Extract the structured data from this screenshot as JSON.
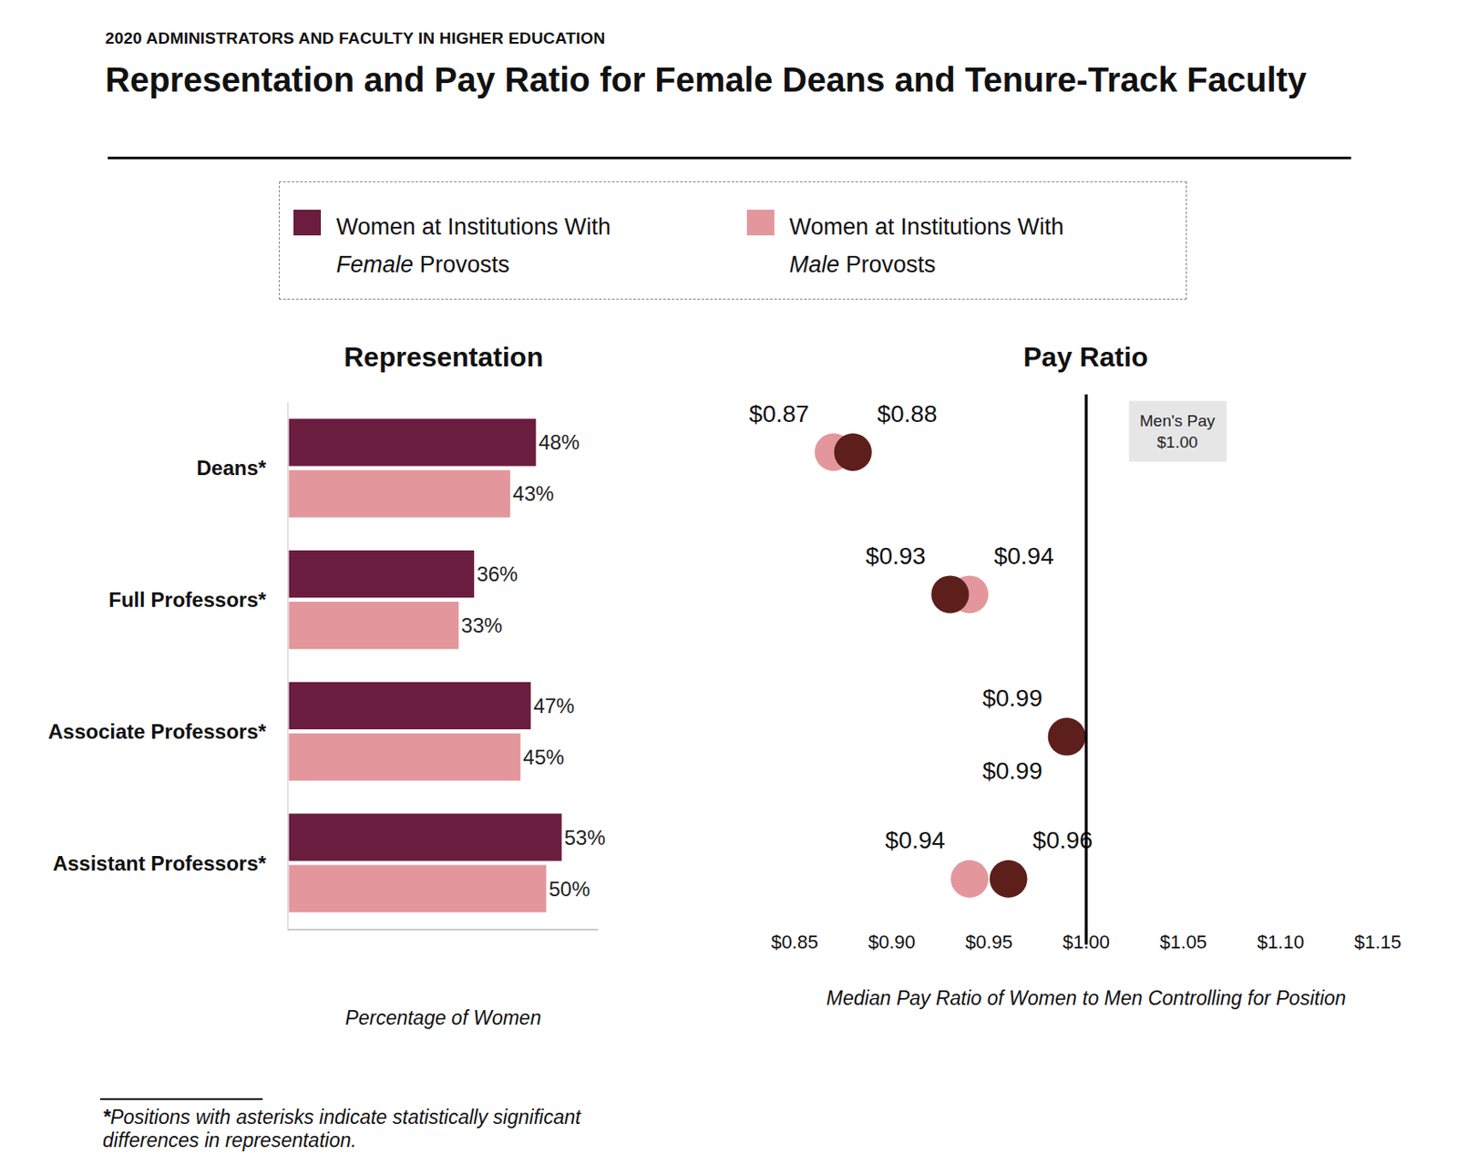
{
  "subtitle": "2020 ADMINISTRATORS AND FACULTY IN HIGHER EDUCATION",
  "title": "Representation and Pay Ratio for Female Deans and Tenure-Track Faculty",
  "footnote": "*Positions with asterisks indicate statistically significant differences in representation.",
  "chart_data": [
    {
      "type": "bar",
      "title": "Representation",
      "orientation": "horizontal",
      "x_label": "Percentage of Women",
      "categories": [
        "Deans*",
        "Full Professors*",
        "Associate Professors*",
        "Assistant Professors*"
      ],
      "series": [
        {
          "name": "Women at Institutions With Female Provosts",
          "color": "#6b1d40",
          "values": [
            48,
            36,
            47,
            53
          ],
          "value_labels": [
            "48%",
            "36%",
            "47%",
            "53%"
          ]
        },
        {
          "name": "Women at Institutions With Male Provosts",
          "color": "#e3979d",
          "values": [
            43,
            33,
            45,
            50
          ],
          "value_labels": [
            "43%",
            "33%",
            "45%",
            "50%"
          ]
        }
      ],
      "xlim": [
        0,
        60
      ],
      "data_labels": true,
      "tick_labels": "y",
      "grid": false
    },
    {
      "type": "scatter",
      "title": "Pay Ratio",
      "x_label": "Median Pay Ratio of Women to Men Controlling for Position",
      "categories": [
        "Deans*",
        "Full Professors*",
        "Associate Professors*",
        "Assistant Professors*"
      ],
      "series": [
        {
          "name": "Women at Institutions With Female Provosts",
          "color": "#5c1f1b",
          "values": [
            0.88,
            0.93,
            0.99,
            0.96
          ],
          "value_labels": [
            "$0.88",
            "$0.93",
            "$0.99",
            "$0.96"
          ]
        },
        {
          "name": "Women at Institutions With Male Provosts",
          "color": "#e3979d",
          "values": [
            0.87,
            0.94,
            0.99,
            0.94
          ],
          "value_labels": [
            "$0.87",
            "$0.94",
            "$0.99",
            "$0.94"
          ]
        }
      ],
      "xlim": [
        0.85,
        1.15
      ],
      "xticks": [
        {
          "value": 0.85,
          "label": "$0.85"
        },
        {
          "value": 0.9,
          "label": "$0.90"
        },
        {
          "value": 0.95,
          "label": "$0.95"
        },
        {
          "value": 1.0,
          "label": "$1.00"
        },
        {
          "value": 1.05,
          "label": "$1.05"
        },
        {
          "value": 1.1,
          "label": "$1.10"
        },
        {
          "value": 1.15,
          "label": "$1.15"
        }
      ],
      "reference": {
        "value": 1.0,
        "label": [
          "Men's Pay",
          "$1.00"
        ]
      },
      "marker": "circle",
      "data_labels": true,
      "tick_labels": "x",
      "grid": false
    }
  ]
}
